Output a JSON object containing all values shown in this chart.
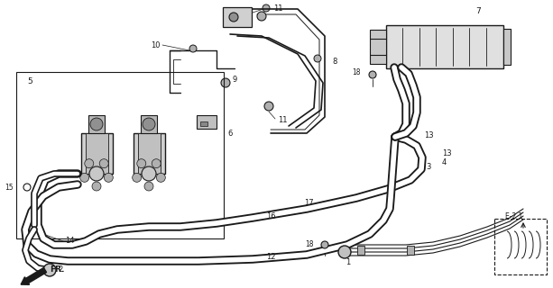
{
  "bg_color": "#ffffff",
  "line_color": "#1a1a1a",
  "fig_width": 6.13,
  "fig_height": 3.2,
  "dpi": 100
}
